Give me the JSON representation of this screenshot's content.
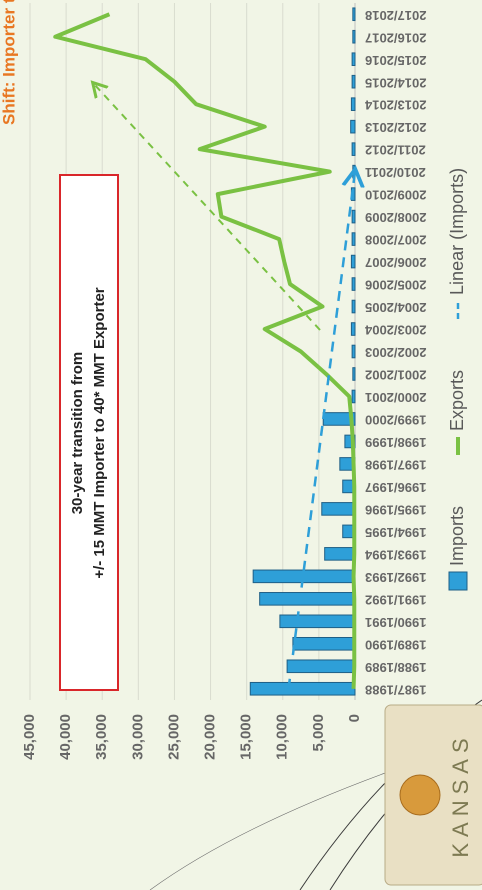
{
  "chart_data": {
    "type": "bar",
    "title": "Shift: Importer to Exporter",
    "categories": [
      "1987/1988",
      "1988/1989",
      "1989/1990",
      "1990/1991",
      "1991/1992",
      "1992/1993",
      "1993/1994",
      "1994/1995",
      "1995/1996",
      "1996/1997",
      "1997/1998",
      "1998/1999",
      "1999/2000",
      "2000/2001",
      "2001/2002",
      "2002/2003",
      "2003/2004",
      "2004/2005",
      "2005/2006",
      "2006/2007",
      "2007/2008",
      "2008/2009",
      "2009/2010",
      "2010/2011",
      "2011/2012",
      "2012/2013",
      "2013/2014",
      "2014/2015",
      "2015/2016",
      "2016/2017",
      "2017/2018"
    ],
    "series": [
      {
        "name": "Imports",
        "type": "bar",
        "color": "#2e9fd8",
        "values": [
          14500,
          9400,
          8600,
          10400,
          13200,
          14100,
          4200,
          1700,
          4600,
          1700,
          2100,
          1400,
          4400,
          400,
          300,
          400,
          500,
          400,
          400,
          500,
          400,
          400,
          500,
          300,
          400,
          600,
          500,
          400,
          400,
          300,
          300
        ]
      },
      {
        "name": "Exports",
        "type": "line",
        "color": "#7ac143",
        "values": [
          200,
          100,
          100,
          100,
          100,
          200,
          100,
          100,
          100,
          100,
          200,
          300,
          500,
          800,
          4000,
          7500,
          12500,
          4500,
          9000,
          9800,
          10500,
          18500,
          19000,
          3500,
          21500,
          12500,
          22000,
          25000,
          29000,
          41500,
          34000
        ]
      },
      {
        "name": "Linear (Imports)",
        "type": "trend",
        "color": "#2e9fd8",
        "values": [
          9200,
          8800,
          8400,
          8000,
          7600,
          7200,
          6800,
          6400,
          6000,
          5600,
          5200,
          4800,
          4400,
          4000,
          3600,
          3200,
          2800,
          2400,
          2000,
          1600,
          1200,
          800,
          400,
          0,
          null,
          null,
          null,
          null,
          null,
          null,
          null
        ]
      }
    ],
    "ylim": [
      0,
      45000
    ],
    "yticks": [
      0,
      {
        "value": 5000,
        "label": "5,000"
      },
      {
        "value": 10000,
        "label": "10,000"
      },
      {
        "value": 15000,
        "label": "15,000"
      },
      {
        "value": 20000,
        "label": "20,000"
      },
      {
        "value": 25000,
        "label": "25,000"
      },
      {
        "value": 30000,
        "label": "30,000"
      },
      {
        "value": 35000,
        "label": "35,000"
      },
      {
        "value": 40000,
        "label": "40,000"
      },
      {
        "value": 45000,
        "label": "45,000"
      }
    ],
    "grid": true,
    "legend": "bottom",
    "annotations": [
      "30-year transition from",
      "+/- 15 MMT Importer to 40* MMT Exporter"
    ]
  },
  "logo_text": "KANSAS"
}
